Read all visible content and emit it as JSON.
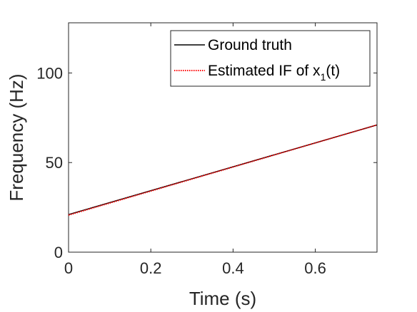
{
  "chart_data": {
    "type": "line",
    "xlabel": "Time (s)",
    "ylabel": "Frequency (Hz)",
    "xlim": [
      0,
      0.75
    ],
    "ylim": [
      0,
      128
    ],
    "xticks": [
      0,
      0.2,
      0.4,
      0.6
    ],
    "xtick_labels": [
      "0",
      "0.2",
      "0.4",
      "0.6"
    ],
    "yticks": [
      0,
      50,
      100
    ],
    "ytick_labels": [
      "0",
      "50",
      "100"
    ],
    "grid": false,
    "legend_position": "top-right",
    "series": [
      {
        "name": "Ground truth",
        "color": "#000000",
        "style": "solid",
        "x": [
          0,
          0.75
        ],
        "y": [
          21,
          71
        ]
      },
      {
        "name_parts": {
          "before": "Estimated IF of x",
          "subscript": "1",
          "after": "(t)"
        },
        "color": "#ff0000",
        "style": "dotted",
        "x": [
          0,
          0.75
        ],
        "y": [
          20.7,
          71
        ]
      }
    ]
  }
}
